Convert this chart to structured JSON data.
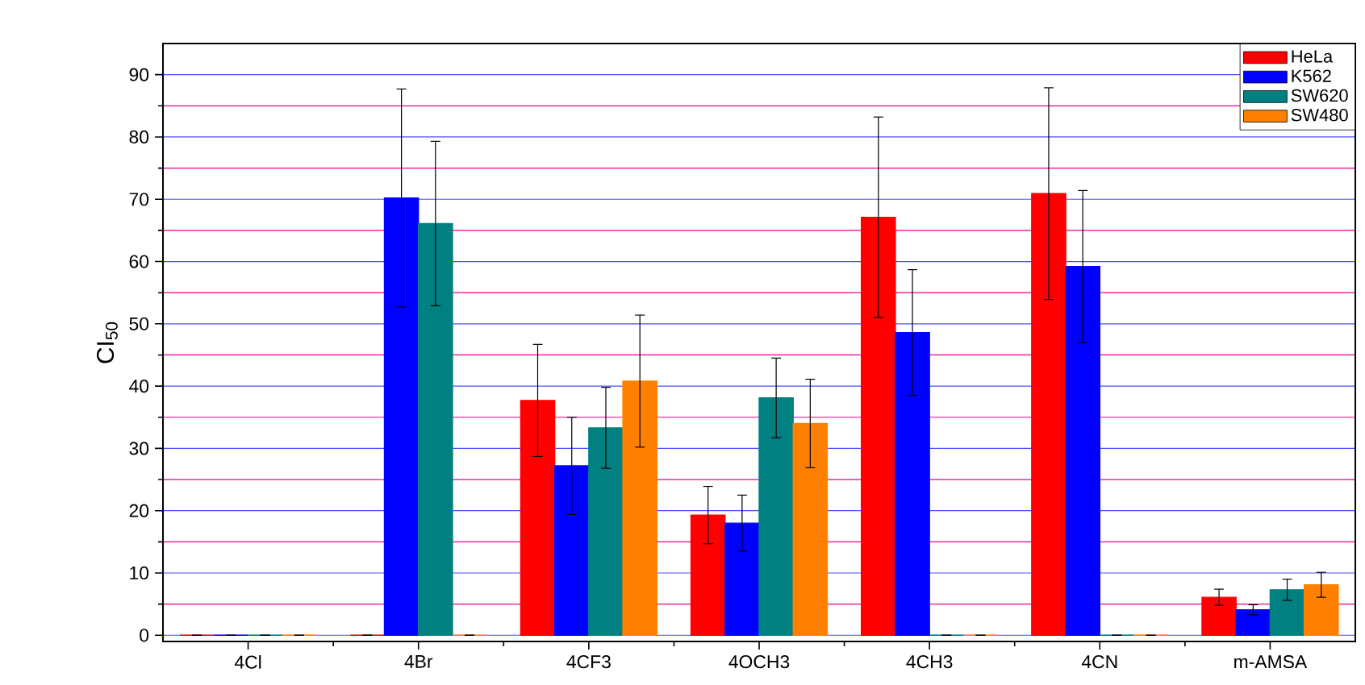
{
  "chart_data": {
    "type": "bar",
    "ylabel": "CI$_{50}$",
    "categories": [
      "4Cl",
      "4Br",
      "4CF3",
      "4OCH3",
      "4CH3",
      "4CN",
      "m-AMSA"
    ],
    "series": [
      {
        "name": "HeLa",
        "color": "#ff0000",
        "values": [
          0,
          0,
          37.7,
          19.3,
          67.1,
          70.9,
          6.1
        ],
        "errors": [
          null,
          null,
          9.0,
          4.6,
          16.1,
          17.0,
          1.3
        ]
      },
      {
        "name": "K562",
        "color": "#0000ff",
        "values": [
          0,
          70.2,
          27.2,
          18.0,
          48.6,
          59.2,
          4.1
        ],
        "errors": [
          null,
          17.5,
          7.8,
          4.5,
          10.1,
          12.2,
          0.8
        ]
      },
      {
        "name": "SW620",
        "color": "#008080",
        "values": [
          0,
          66.1,
          33.3,
          38.1,
          0,
          0,
          7.3
        ],
        "errors": [
          null,
          13.2,
          6.5,
          6.4,
          null,
          null,
          1.7
        ]
      },
      {
        "name": "SW480",
        "color": "#ff8000",
        "values": [
          0,
          0,
          40.8,
          34.0,
          0,
          0,
          8.1
        ],
        "errors": [
          null,
          null,
          10.6,
          7.1,
          null,
          null,
          2.0
        ]
      }
    ],
    "ylim": [
      -1,
      95
    ],
    "yticks": [
      0,
      {
        "value": 5,
        "label": null
      },
      10,
      {
        "value": 15,
        "label": null
      },
      20,
      {
        "value": 25,
        "label": null
      },
      30,
      {
        "value": 35,
        "label": null
      },
      40,
      {
        "value": 45,
        "label": null
      },
      50,
      {
        "value": 55,
        "label": null
      },
      60,
      {
        "value": 65,
        "label": null
      },
      70,
      {
        "value": 75,
        "label": null
      },
      80,
      {
        "value": 85,
        "label": null
      },
      90
    ],
    "grid": "y",
    "legend": "top right"
  }
}
